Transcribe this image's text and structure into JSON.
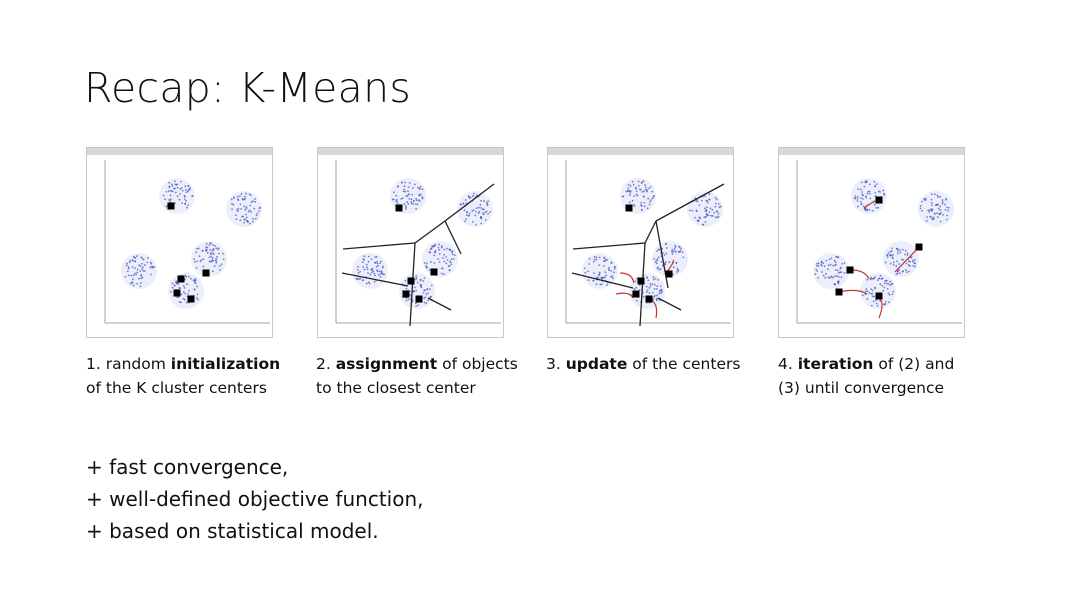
{
  "slide": {
    "title": "Recap: K-Means",
    "steps": [
      {
        "num": "1. random ",
        "bold": "initialization",
        "rest": "",
        "line2": "of the K cluster centers"
      },
      {
        "num": "2. ",
        "bold": "assignment",
        "rest": " of objects",
        "line2": "to the closest center"
      },
      {
        "num": "3. ",
        "bold": "update",
        "rest": " of the centers",
        "line2": ""
      },
      {
        "num": "4. ",
        "bold": "iteration",
        "rest": " of (2) and",
        "line2": "(3) until convergence"
      }
    ],
    "bullets": [
      "+ fast convergence,",
      "+ well-defined objective function,",
      "+ based on statistical model."
    ]
  },
  "colors": {
    "points": "#3a4fc0",
    "centers": "#000000",
    "arrows": "#c0392b",
    "boundaries": "#222222"
  }
}
